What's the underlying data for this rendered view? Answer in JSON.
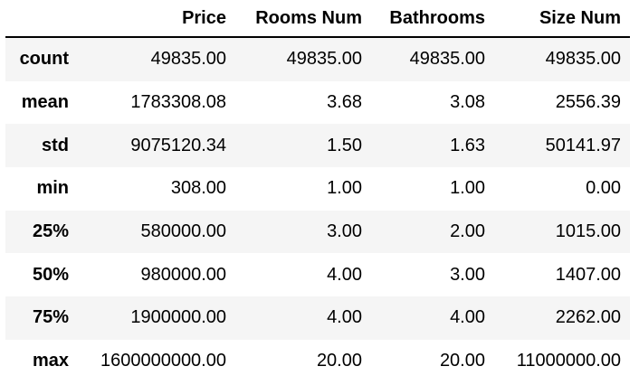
{
  "table": {
    "columns": [
      "",
      "Price",
      "Rooms Num",
      "Bathrooms",
      "Size Num"
    ],
    "rows": [
      {
        "label": "count",
        "values": [
          "49835.00",
          "49835.00",
          "49835.00",
          "49835.00"
        ]
      },
      {
        "label": "mean",
        "values": [
          "1783308.08",
          "3.68",
          "3.08",
          "2556.39"
        ]
      },
      {
        "label": "std",
        "values": [
          "9075120.34",
          "1.50",
          "1.63",
          "50141.97"
        ]
      },
      {
        "label": "min",
        "values": [
          "308.00",
          "1.00",
          "1.00",
          "0.00"
        ]
      },
      {
        "label": "25%",
        "values": [
          "580000.00",
          "3.00",
          "2.00",
          "1015.00"
        ]
      },
      {
        "label": "50%",
        "values": [
          "980000.00",
          "4.00",
          "3.00",
          "1407.00"
        ]
      },
      {
        "label": "75%",
        "values": [
          "1900000.00",
          "4.00",
          "4.00",
          "2262.00"
        ]
      },
      {
        "label": "max",
        "values": [
          "1600000000.00",
          "20.00",
          "20.00",
          "11000000.00"
        ]
      }
    ]
  },
  "colors": {
    "stripe": "#f5f5f5",
    "background": "#ffffff",
    "text": "#000000",
    "header_rule": "#000000"
  }
}
